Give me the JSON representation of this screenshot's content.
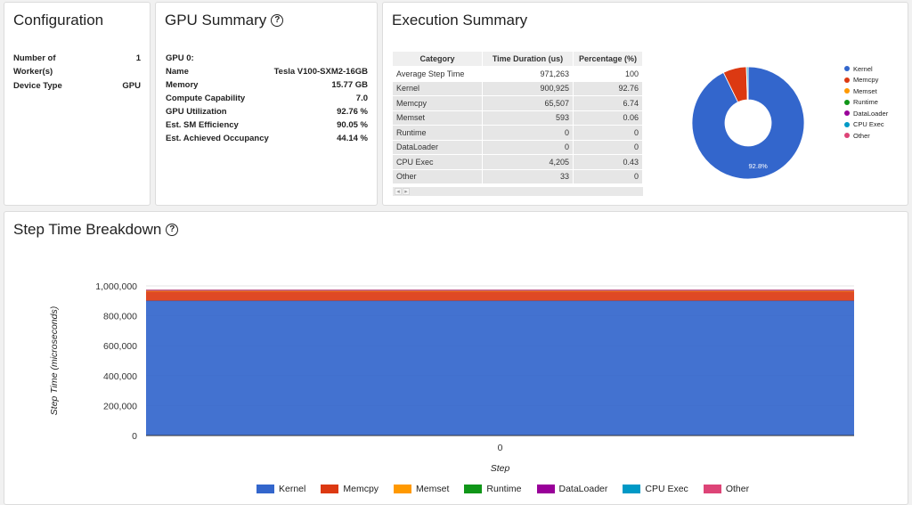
{
  "configuration": {
    "title": "Configuration",
    "rows": [
      {
        "label": "Number of Worker(s)",
        "label_line1": "Number of",
        "label_line2": "Worker(s)",
        "value": "1"
      },
      {
        "label": "Device Type",
        "value": "GPU"
      }
    ]
  },
  "gpu_summary": {
    "title": "GPU Summary",
    "header": "GPU 0:",
    "rows": [
      {
        "label": "Name",
        "value": "Tesla V100-SXM2-16GB"
      },
      {
        "label": "Memory",
        "value": "15.77 GB"
      },
      {
        "label": "Compute Capability",
        "value": "7.0"
      },
      {
        "label": "GPU Utilization",
        "value": "92.76 %"
      },
      {
        "label": "Est. SM Efficiency",
        "value": "90.05 %"
      },
      {
        "label": "Est. Achieved Occupancy",
        "value": "44.14 %"
      }
    ]
  },
  "execution_summary": {
    "title": "Execution Summary",
    "columns": [
      "Category",
      "Time Duration (us)",
      "Percentage (%)"
    ],
    "rows": [
      [
        "Average Step Time",
        "971,263",
        "100"
      ],
      [
        "Kernel",
        "900,925",
        "92.76"
      ],
      [
        "Memcpy",
        "65,507",
        "6.74"
      ],
      [
        "Memset",
        "593",
        "0.06"
      ],
      [
        "Runtime",
        "0",
        "0"
      ],
      [
        "DataLoader",
        "0",
        "0"
      ],
      [
        "CPU Exec",
        "4,205",
        "0.43"
      ],
      [
        "Other",
        "33",
        "0"
      ]
    ],
    "scroll_left": "◂",
    "scroll_right": "▸",
    "pie_label": "92.8%"
  },
  "step_time": {
    "title": "Step Time Breakdown"
  },
  "colors": {
    "Kernel": "#3366cc",
    "Memcpy": "#dc3912",
    "Memset": "#ff9900",
    "Runtime": "#109618",
    "DataLoader": "#990099",
    "CPU Exec": "#0099c6",
    "Other": "#dd4477"
  },
  "chart_data": [
    {
      "type": "pie",
      "style": "donut",
      "labels": [
        "Kernel",
        "Memcpy",
        "Memset",
        "Runtime",
        "DataLoader",
        "CPU Exec",
        "Other"
      ],
      "values": [
        900925,
        65507,
        593,
        0,
        0,
        4205,
        33
      ],
      "slice_label": "92.8%",
      "legend": "right"
    },
    {
      "type": "area",
      "stacked": true,
      "x": [
        0
      ],
      "categories": [
        "0"
      ],
      "series": [
        {
          "name": "Kernel",
          "values": [
            900925
          ]
        },
        {
          "name": "Memcpy",
          "values": [
            65507
          ]
        },
        {
          "name": "Memset",
          "values": [
            593
          ]
        },
        {
          "name": "Runtime",
          "values": [
            0
          ]
        },
        {
          "name": "DataLoader",
          "values": [
            0
          ]
        },
        {
          "name": "CPU Exec",
          "values": [
            4205
          ]
        },
        {
          "name": "Other",
          "values": [
            33
          ]
        }
      ],
      "xlabel": "Step",
      "ylabel": "Step Time (microseconds)",
      "ylim": [
        0,
        1000000
      ],
      "yticks": [
        "0",
        "200,000",
        "400,000",
        "600,000",
        "800,000",
        "1,000,000"
      ],
      "legend": "bottom"
    }
  ]
}
